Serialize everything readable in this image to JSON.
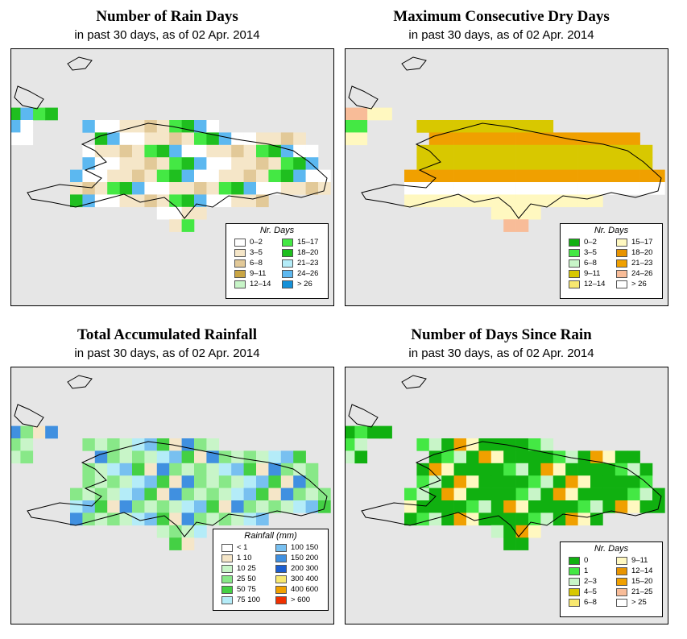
{
  "panels": [
    {
      "title": "Number of Rain Days",
      "subtitle": "in past 30 days, as of  02 Apr. 2014",
      "legend_title": "Nr. Days",
      "legend": [
        {
          "label": "0–2",
          "color": "#ffffff"
        },
        {
          "label": "3–5",
          "color": "#f5e6c8"
        },
        {
          "label": "6–8",
          "color": "#e2c998"
        },
        {
          "label": "9–11",
          "color": "#c9a544"
        },
        {
          "label": "12–14",
          "color": "#c8f5c8"
        },
        {
          "label": "15–17",
          "color": "#44e844"
        },
        {
          "label": "18–20",
          "color": "#1fbf1f"
        },
        {
          "label": "21–23",
          "color": "#b4ecf8"
        },
        {
          "label": "24–26",
          "color": "#5cb8f0"
        },
        {
          "label": "> 26",
          "color": "#1490d8"
        }
      ]
    },
    {
      "title": "Maximum Consecutive Dry Days",
      "subtitle": "in past 30 days, as of  02 Apr. 2014",
      "legend_title": "Nr. Days",
      "legend": [
        {
          "label": "0–2",
          "color": "#10b010"
        },
        {
          "label": "3–5",
          "color": "#44e844"
        },
        {
          "label": "6–8",
          "color": "#c8f5c8"
        },
        {
          "label": "9–11",
          "color": "#d8c800"
        },
        {
          "label": "12–14",
          "color": "#f8e870"
        },
        {
          "label": "15–17",
          "color": "#fff8c0"
        },
        {
          "label": "18–20",
          "color": "#e89400"
        },
        {
          "label": "21–23",
          "color": "#f0a000"
        },
        {
          "label": "24–26",
          "color": "#f8bc98"
        },
        {
          "label": "> 26",
          "color": "#ffffff"
        }
      ]
    },
    {
      "title": "Total Accumulated Rainfall",
      "subtitle": "in past 30 days, as of  02 Apr. 2014",
      "legend_title": "Rainfall (mm)",
      "legend": [
        {
          "label": "< 1",
          "color": "#ffffff"
        },
        {
          "label": "1    10",
          "color": "#f5e6c8"
        },
        {
          "label": "10    25",
          "color": "#c8f5c8"
        },
        {
          "label": "25    50",
          "color": "#88e888"
        },
        {
          "label": "50    75",
          "color": "#44d044"
        },
        {
          "label": "75  100",
          "color": "#b4ecf8"
        },
        {
          "label": "100  150",
          "color": "#78c0f0"
        },
        {
          "label": "150  200",
          "color": "#4090e0"
        },
        {
          "label": "200  300",
          "color": "#1c5ed0"
        },
        {
          "label": "300  400",
          "color": "#f8e870"
        },
        {
          "label": "400  600",
          "color": "#f0a000"
        },
        {
          "label": "> 600",
          "color": "#f03000"
        }
      ]
    },
    {
      "title": "Number of Days Since Rain",
      "subtitle": "in past 30 days, as of  02 Apr. 2014",
      "legend_title": "Nr. Days",
      "legend": [
        {
          "label": "0",
          "color": "#10b010"
        },
        {
          "label": "1",
          "color": "#44e844"
        },
        {
          "label": "2–3",
          "color": "#c8f5c8"
        },
        {
          "label": "4–5",
          "color": "#d8c800"
        },
        {
          "label": "6–8",
          "color": "#f8e870"
        },
        {
          "label": "9–11",
          "color": "#fff8c0"
        },
        {
          "label": "12–14",
          "color": "#e89400"
        },
        {
          "label": "15–20",
          "color": "#f0a000"
        },
        {
          "label": "21–25",
          "color": "#f8bc98"
        },
        {
          "label": "> 25",
          "color": "#ffffff"
        }
      ]
    }
  ]
}
